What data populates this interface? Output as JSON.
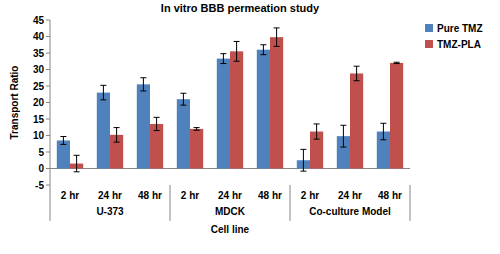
{
  "chart_data": {
    "type": "bar",
    "title": "In vitro BBB permeation study",
    "x_label": "Cell line",
    "y_label": "Transport Ratio",
    "categories": [
      "2 hr",
      "24 hr",
      "48 hr",
      "2 hr",
      "24 hr",
      "48 hr",
      "2 hr",
      "24 hr",
      "48 hr"
    ],
    "groups": [
      "U-373",
      "MDCK",
      "Co-culture Model"
    ],
    "series": [
      {
        "name": "Pure TMZ",
        "color": "#4f81bd",
        "values": [
          8.5,
          23,
          25.5,
          21,
          33.3,
          36,
          2.5,
          9.8,
          11.2
        ],
        "errors": [
          1.2,
          2.2,
          2,
          1.8,
          1.5,
          1.5,
          3.3,
          3.3,
          2.5
        ]
      },
      {
        "name": "TMZ-PLA",
        "color": "#c0504d",
        "values": [
          1.5,
          10.2,
          13.5,
          12,
          35.5,
          39.8,
          11.2,
          28.8,
          32
        ],
        "errors": [
          2.5,
          2.2,
          2,
          0.4,
          3,
          2.8,
          2.3,
          2.2,
          0.2
        ]
      }
    ],
    "ylim": [
      -5,
      45
    ],
    "yticks": [
      -5,
      0,
      5,
      10,
      15,
      20,
      25,
      30,
      35,
      40,
      45
    ],
    "grid": false,
    "legend": "right"
  }
}
